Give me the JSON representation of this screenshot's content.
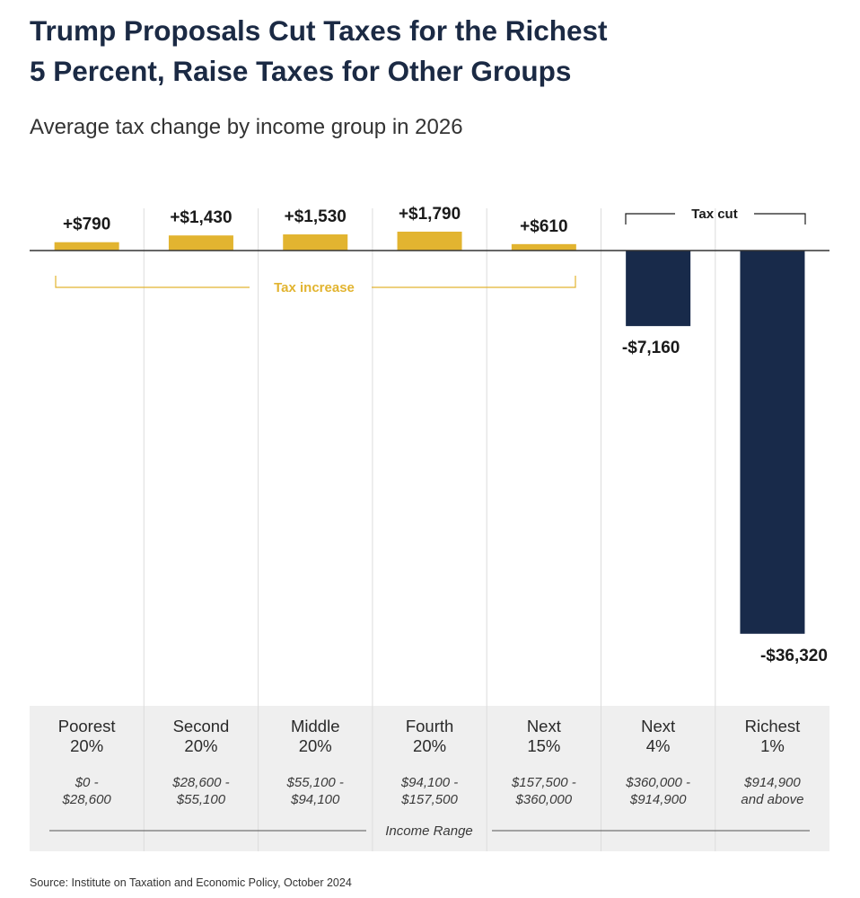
{
  "title_line1": "Trump Proposals Cut Taxes for the Richest",
  "title_line2": "5 Percent, Raise Taxes for Other Groups",
  "subtitle": "Average tax change by income group in 2026",
  "source": "Source: Institute on Taxation and Economic Policy, October 2024",
  "colors": {
    "increase": "#e2b430",
    "cut": "#182a4a",
    "title": "#1b2a44",
    "panel": "#efefef"
  },
  "chart_data": {
    "type": "bar",
    "title": "Average tax change by income group in 2026",
    "xlabel": "Income Range",
    "ylabel": "",
    "ylim": [
      -36320,
      1790
    ],
    "grid": false,
    "legend": "none",
    "groups": [
      {
        "line1": "Poorest",
        "line2": "20%",
        "range1": "$0 -",
        "range2": "$28,600",
        "value": 790,
        "label": "+$790"
      },
      {
        "line1": "Second",
        "line2": "20%",
        "range1": "$28,600 -",
        "range2": "$55,100",
        "value": 1430,
        "label": "+$1,430"
      },
      {
        "line1": "Middle",
        "line2": "20%",
        "range1": "$55,100 -",
        "range2": "$94,100",
        "value": 1530,
        "label": "+$1,530"
      },
      {
        "line1": "Fourth",
        "line2": "20%",
        "range1": "$94,100 -",
        "range2": "$157,500",
        "value": 1790,
        "label": "+$1,790"
      },
      {
        "line1": "Next",
        "line2": "15%",
        "range1": "$157,500 -",
        "range2": "$360,000",
        "value": 610,
        "label": "+$610"
      },
      {
        "line1": "Next",
        "line2": "4%",
        "range1": "$360,000 -",
        "range2": "$914,900",
        "value": -7160,
        "label": "-$7,160"
      },
      {
        "line1": "Richest",
        "line2": "1%",
        "range1": "$914,900",
        "range2": "and above",
        "value": -36320,
        "label": "-$36,320"
      }
    ],
    "annotations": {
      "increase": "Tax increase",
      "cut": "Tax cut"
    }
  }
}
